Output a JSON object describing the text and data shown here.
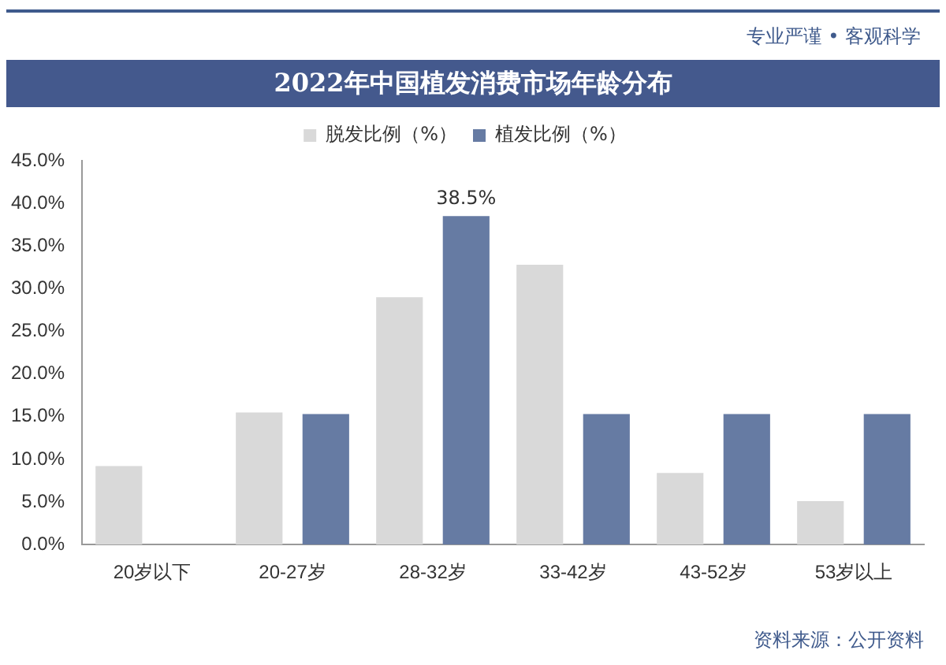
{
  "chart_data": {
    "type": "bar",
    "title": "2022年中国植发消费市场年龄分布",
    "subtitle": "专业严谨 • 客观科学",
    "categories": [
      "20岁以下",
      "20-27岁",
      "28-32岁",
      "33-42岁",
      "43-52岁",
      "53岁以上"
    ],
    "series": [
      {
        "name": "脱发比例（%）",
        "color": "#d9d9d9",
        "values": [
          9.2,
          15.5,
          29.0,
          32.8,
          8.4,
          5.1
        ]
      },
      {
        "name": "植发比例（%）",
        "color": "#667ba3",
        "values": [
          0,
          15.3,
          38.5,
          15.3,
          15.3,
          15.3
        ],
        "value_labels": [
          null,
          null,
          "38.5%",
          null,
          null,
          null
        ]
      }
    ],
    "ylim": [
      0,
      45
    ],
    "yticks": [
      {
        "value": 0,
        "label": "0.0%"
      },
      {
        "value": 5,
        "label": "5.0%"
      },
      {
        "value": 10,
        "label": "10.0%"
      },
      {
        "value": 15,
        "label": "15.0%"
      },
      {
        "value": 20,
        "label": "20.0%"
      },
      {
        "value": 25,
        "label": "25.0%"
      },
      {
        "value": 30,
        "label": "30.0%"
      },
      {
        "value": 35,
        "label": "35.0%"
      },
      {
        "value": 40,
        "label": "40.0%"
      },
      {
        "value": 45,
        "label": "45.0%"
      }
    ],
    "grid": false,
    "legend": "top",
    "annotations": [
      "资料来源：公开资料"
    ]
  }
}
